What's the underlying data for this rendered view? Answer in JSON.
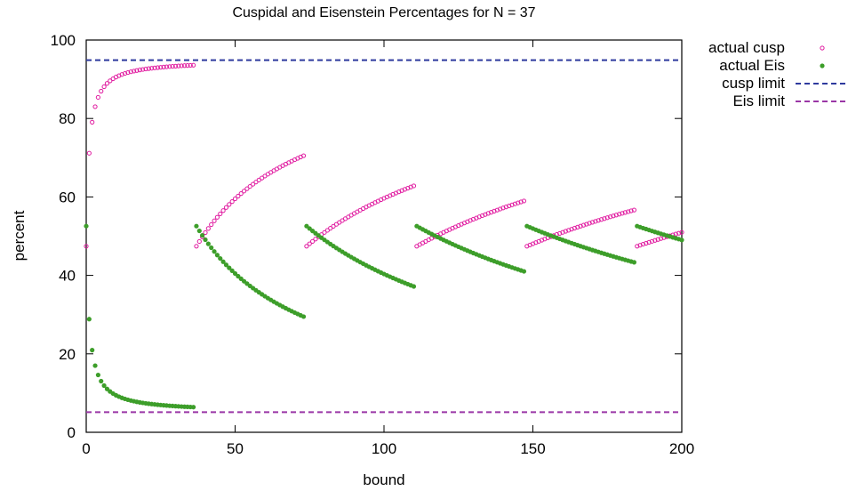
{
  "chart_data": {
    "type": "scatter",
    "title": "Cuspidal and Eisenstein Percentages for N = 37",
    "xlabel": "bound",
    "ylabel": "percent",
    "xlim": [
      0,
      200
    ],
    "ylim": [
      0,
      100
    ],
    "xticks": [
      0,
      50,
      100,
      150,
      200
    ],
    "yticks": [
      0,
      20,
      40,
      60,
      80,
      100
    ],
    "grid": false,
    "legend_position": "outside-top-right",
    "generator": {
      "period": 37,
      "cusp_limit": 94.87,
      "eis_limit": 5.13
    },
    "series": [
      {
        "name": "actual cusp",
        "marker": "open-circle",
        "color": "#e0199f",
        "values_description": "one point per integer bound 0..200"
      },
      {
        "name": "actual Eis",
        "marker": "filled-circle",
        "color": "#3d9e2a",
        "values_description": "one point per integer bound 0..200"
      },
      {
        "name": "cusp limit",
        "style": "dashed",
        "color": "#2e3a9e",
        "value": 94.87
      },
      {
        "name": "Eis limit",
        "style": "dashed",
        "color": "#9a36a6",
        "value": 5.13
      }
    ]
  }
}
